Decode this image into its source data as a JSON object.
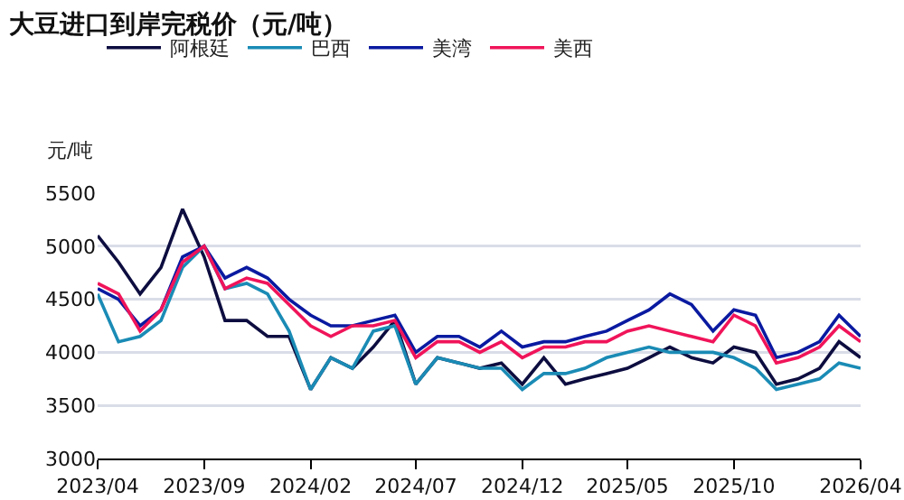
{
  "chart_data": {
    "type": "line",
    "title": "大豆进口到岸完税价（元/吨）",
    "ylabel": "元/吨",
    "x": [
      "2023-04",
      "2023-05",
      "2023-06",
      "2023-07",
      "2023-08",
      "2023-09",
      "2023-10",
      "2023-11",
      "2023-12",
      "2024-01",
      "2024-02",
      "2024-03",
      "2024-04",
      "2024-05",
      "2024-06",
      "2024-07",
      "2024-08",
      "2024-09",
      "2024-10",
      "2024-11",
      "2024-12",
      "2025-01",
      "2025-02",
      "2025-03",
      "2025-04",
      "2025-05",
      "2025-06",
      "2025-07",
      "2025-08",
      "2025-09",
      "2025-10",
      "2025-11",
      "2025-12",
      "2026-01",
      "2026-02",
      "2026-03",
      "2026-04"
    ],
    "series": [
      {
        "name": "阿根廷",
        "color": "#0d0d40",
        "values": [
          5100,
          4850,
          4550,
          4800,
          5350,
          4900,
          4300,
          4300,
          4150,
          4150,
          3650,
          3950,
          3850,
          4050,
          4300,
          3700,
          3950,
          3900,
          3850,
          3900,
          3700,
          3950,
          3700,
          3750,
          3800,
          3850,
          3950,
          4050,
          3950,
          3900,
          4050,
          4000,
          3700,
          3750,
          3850,
          4100,
          3950
        ]
      },
      {
        "name": "巴西",
        "color": "#1a8bb5",
        "values": [
          4550,
          4100,
          4150,
          4300,
          4800,
          5000,
          4600,
          4650,
          4550,
          4200,
          3650,
          3950,
          3850,
          4200,
          4250,
          3700,
          3950,
          3900,
          3850,
          3850,
          3650,
          3800,
          3800,
          3850,
          3950,
          4000,
          4050,
          4000,
          4000,
          4000,
          3950,
          3850,
          3650,
          3700,
          3750,
          3900,
          3850
        ]
      },
      {
        "name": "美湾",
        "color": "#0a1aa0",
        "values": [
          4600,
          4500,
          4250,
          4400,
          4900,
          5000,
          4700,
          4800,
          4700,
          4500,
          4350,
          4250,
          4250,
          4300,
          4350,
          4000,
          4150,
          4150,
          4050,
          4200,
          4050,
          4100,
          4100,
          4150,
          4200,
          4300,
          4400,
          4550,
          4450,
          4200,
          4400,
          4350,
          3950,
          4000,
          4100,
          4350,
          4150
        ]
      },
      {
        "name": "美西",
        "color": "#f0145a",
        "values": [
          4650,
          4550,
          4200,
          4400,
          4850,
          5000,
          4600,
          4700,
          4650,
          4450,
          4250,
          4150,
          4250,
          4250,
          4300,
          3950,
          4100,
          4100,
          4000,
          4100,
          3950,
          4050,
          4050,
          4100,
          4100,
          4200,
          4250,
          4200,
          4150,
          4100,
          4350,
          4250,
          3900,
          3950,
          4050,
          4250,
          4100
        ]
      }
    ],
    "xlim": [
      "2023-04",
      "2026-04"
    ],
    "xticks": [
      {
        "value": "2023-04",
        "label": "2023/04"
      },
      {
        "value": "2023-09",
        "label": "2023/09"
      },
      {
        "value": "2024-02",
        "label": "2024/02"
      },
      {
        "value": "2024-07",
        "label": "2024/07"
      },
      {
        "value": "2024-12",
        "label": "2024/12"
      },
      {
        "value": "2025-05",
        "label": "2025/05"
      },
      {
        "value": "2025-10",
        "label": "2025/10"
      },
      {
        "value": "2026-04",
        "label": "2026/04"
      }
    ],
    "ylim": [
      3000,
      5500
    ],
    "yticks": [
      3000,
      3500,
      4000,
      4500,
      5000,
      5500
    ],
    "grid": "y",
    "legend": "top",
    "line_style": "solid",
    "marker": "none"
  }
}
